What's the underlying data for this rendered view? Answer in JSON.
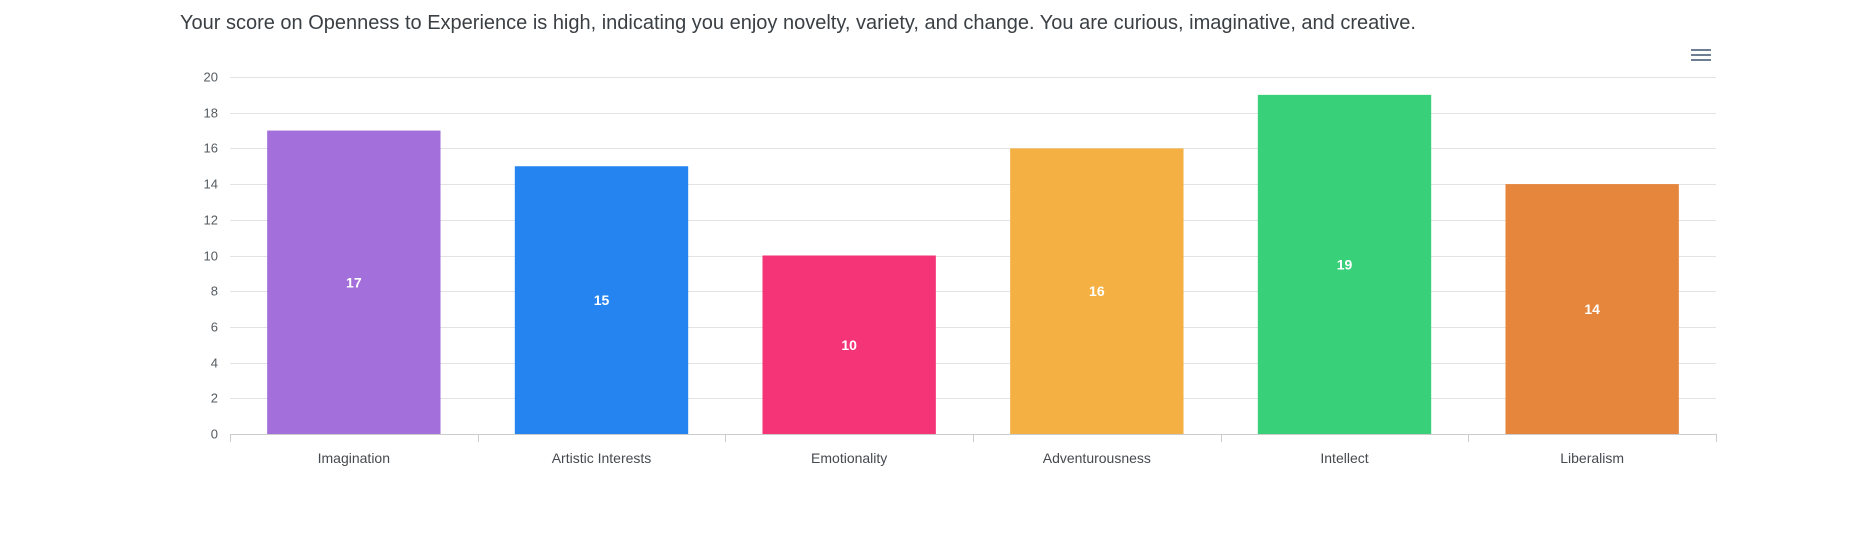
{
  "description": "Your score on Openness to Experience is high, indicating you enjoy novelty, variety, and change. You are curious, imaginative, and creative.",
  "menu_icon": "hamburger-menu-icon",
  "chart_data": {
    "type": "bar",
    "categories": [
      "Imagination",
      "Artistic Interests",
      "Emotionality",
      "Adventurousness",
      "Intellect",
      "Liberalism"
    ],
    "values": [
      17,
      15,
      10,
      16,
      19,
      14
    ],
    "colors": [
      "#a36fdb",
      "#2584f0",
      "#f43476",
      "#f5b043",
      "#38d079",
      "#e6863c"
    ],
    "ylim": [
      0,
      20
    ],
    "yticks": [
      0,
      2,
      4,
      6,
      8,
      10,
      12,
      14,
      16,
      18,
      20
    ],
    "grid": true,
    "data_labels": true,
    "xlabel": "",
    "ylabel": "",
    "title": ""
  }
}
